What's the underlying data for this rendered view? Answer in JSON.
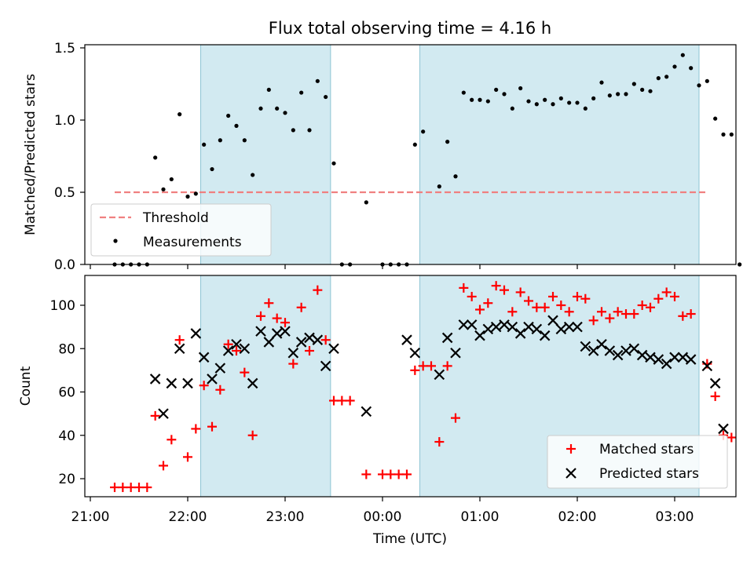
{
  "title": "Flux total observing time = 4.16 h",
  "chart_data": [
    {
      "type": "scatter",
      "ylabel": "Matched/Predicted stars",
      "xlabel": "",
      "xlim": [
        "21:00",
        "03:36"
      ],
      "ylim": [
        0,
        1.55
      ],
      "yticks": [
        0.0,
        0.5,
        1.0,
        1.5
      ],
      "ytick_labels": [
        "0.0",
        "0.5",
        "1.0",
        "1.5"
      ],
      "shaded_intervals": [
        [
          "22:08",
          "23:28"
        ],
        [
          "00:23",
          "03:15"
        ]
      ],
      "shade_color": "#add8e6",
      "threshold": {
        "name": "Threshold",
        "value": 0.5,
        "x_range": [
          "21:15",
          "03:20"
        ],
        "color": "#f08080"
      },
      "series": [
        {
          "name": "Measurements",
          "color": "#000000",
          "points": [
            [
              "21:15",
              0
            ],
            [
              "21:20",
              0
            ],
            [
              "21:25",
              0
            ],
            [
              "21:30",
              0
            ],
            [
              "21:35",
              0
            ],
            [
              "21:40",
              0.74
            ],
            [
              "21:45",
              0.52
            ],
            [
              "21:50",
              0.59
            ],
            [
              "21:55",
              1.04
            ],
            [
              "22:00",
              0.47
            ],
            [
              "22:05",
              0.49
            ],
            [
              "22:10",
              0.83
            ],
            [
              "22:15",
              0.66
            ],
            [
              "22:20",
              0.86
            ],
            [
              "22:25",
              1.03
            ],
            [
              "22:30",
              0.96
            ],
            [
              "22:35",
              0.86
            ],
            [
              "22:40",
              0.62
            ],
            [
              "22:45",
              1.08
            ],
            [
              "22:50",
              1.21
            ],
            [
              "22:55",
              1.08
            ],
            [
              "23:00",
              1.05
            ],
            [
              "23:05",
              0.93
            ],
            [
              "23:10",
              1.19
            ],
            [
              "23:15",
              0.93
            ],
            [
              "23:20",
              1.27
            ],
            [
              "23:25",
              1.16
            ],
            [
              "23:30",
              0.7
            ],
            [
              "23:35",
              0
            ],
            [
              "23:40",
              0
            ],
            [
              "23:50",
              0.43
            ],
            [
              "00:00",
              0
            ],
            [
              "00:05",
              0
            ],
            [
              "00:10",
              0
            ],
            [
              "00:15",
              0
            ],
            [
              "00:20",
              0.83
            ],
            [
              "00:25",
              0.92
            ],
            [
              "00:35",
              0.54
            ],
            [
              "00:40",
              0.85
            ],
            [
              "00:45",
              0.61
            ],
            [
              "00:50",
              1.19
            ],
            [
              "00:55",
              1.14
            ],
            [
              "01:00",
              1.14
            ],
            [
              "01:05",
              1.13
            ],
            [
              "01:10",
              1.21
            ],
            [
              "01:15",
              1.18
            ],
            [
              "01:20",
              1.08
            ],
            [
              "01:25",
              1.22
            ],
            [
              "01:30",
              1.13
            ],
            [
              "01:35",
              1.11
            ],
            [
              "01:40",
              1.14
            ],
            [
              "01:45",
              1.11
            ],
            [
              "01:50",
              1.15
            ],
            [
              "01:55",
              1.12
            ],
            [
              "02:00",
              1.12
            ],
            [
              "02:05",
              1.08
            ],
            [
              "02:10",
              1.15
            ],
            [
              "02:15",
              1.26
            ],
            [
              "02:20",
              1.17
            ],
            [
              "02:25",
              1.18
            ],
            [
              "02:30",
              1.18
            ],
            [
              "02:35",
              1.25
            ],
            [
              "02:40",
              1.21
            ],
            [
              "02:45",
              1.2
            ],
            [
              "02:50",
              1.29
            ],
            [
              "02:55",
              1.3
            ],
            [
              "03:00",
              1.37
            ],
            [
              "03:05",
              1.45
            ],
            [
              "03:10",
              1.36
            ],
            [
              "03:15",
              1.24
            ],
            [
              "03:20",
              1.27
            ],
            [
              "03:25",
              1.01
            ],
            [
              "03:30",
              0.9
            ],
            [
              "03:35",
              0.9
            ],
            [
              "03:40",
              0
            ]
          ]
        }
      ],
      "legend": {
        "location": "lower-left",
        "entries": [
          "Threshold",
          "Measurements"
        ]
      }
    },
    {
      "type": "scatter",
      "ylabel": "Count",
      "xlabel": "Time (UTC)",
      "xlim": [
        "21:00",
        "03:36"
      ],
      "ylim": [
        12,
        114
      ],
      "yticks": [
        20,
        40,
        60,
        80,
        100
      ],
      "ytick_labels": [
        "20",
        "40",
        "60",
        "80",
        "100"
      ],
      "xtick_labels": [
        "21:00",
        "22:00",
        "23:00",
        "00:00",
        "01:00",
        "02:00",
        "03:00"
      ],
      "shaded_intervals": [
        [
          "22:08",
          "23:28"
        ],
        [
          "00:23",
          "03:15"
        ]
      ],
      "series": [
        {
          "name": "Matched stars",
          "marker": "plus",
          "color": "#ff0000",
          "points": [
            [
              "21:15",
              16
            ],
            [
              "21:20",
              16
            ],
            [
              "21:25",
              16
            ],
            [
              "21:30",
              16
            ],
            [
              "21:35",
              16
            ],
            [
              "21:40",
              49
            ],
            [
              "21:45",
              26
            ],
            [
              "21:50",
              38
            ],
            [
              "21:55",
              84
            ],
            [
              "22:00",
              30
            ],
            [
              "22:05",
              43
            ],
            [
              "22:10",
              63
            ],
            [
              "22:15",
              44
            ],
            [
              "22:20",
              61
            ],
            [
              "22:25",
              82
            ],
            [
              "22:30",
              79
            ],
            [
              "22:35",
              69
            ],
            [
              "22:40",
              40
            ],
            [
              "22:45",
              95
            ],
            [
              "22:50",
              101
            ],
            [
              "22:55",
              94
            ],
            [
              "23:00",
              92
            ],
            [
              "23:05",
              73
            ],
            [
              "23:10",
              99
            ],
            [
              "23:15",
              79
            ],
            [
              "23:20",
              107
            ],
            [
              "23:25",
              84
            ],
            [
              "23:30",
              56
            ],
            [
              "23:35",
              56
            ],
            [
              "23:40",
              56
            ],
            [
              "23:50",
              22
            ],
            [
              "00:00",
              22
            ],
            [
              "00:05",
              22
            ],
            [
              "00:10",
              22
            ],
            [
              "00:15",
              22
            ],
            [
              "00:20",
              70
            ],
            [
              "00:25",
              72
            ],
            [
              "00:30",
              72
            ],
            [
              "00:35",
              37
            ],
            [
              "00:40",
              72
            ],
            [
              "00:45",
              48
            ],
            [
              "00:50",
              108
            ],
            [
              "00:55",
              104
            ],
            [
              "01:00",
              98
            ],
            [
              "01:05",
              101
            ],
            [
              "01:10",
              109
            ],
            [
              "01:15",
              107
            ],
            [
              "01:20",
              97
            ],
            [
              "01:25",
              106
            ],
            [
              "01:30",
              102
            ],
            [
              "01:35",
              99
            ],
            [
              "01:40",
              99
            ],
            [
              "01:45",
              104
            ],
            [
              "01:50",
              100
            ],
            [
              "01:55",
              97
            ],
            [
              "02:00",
              104
            ],
            [
              "02:05",
              103
            ],
            [
              "02:10",
              93
            ],
            [
              "02:15",
              97
            ],
            [
              "02:20",
              94
            ],
            [
              "02:25",
              97
            ],
            [
              "02:30",
              96
            ],
            [
              "02:35",
              96
            ],
            [
              "02:40",
              100
            ],
            [
              "02:45",
              99
            ],
            [
              "02:50",
              103
            ],
            [
              "02:55",
              106
            ],
            [
              "03:00",
              104
            ],
            [
              "03:05",
              95
            ],
            [
              "03:10",
              96
            ],
            [
              "03:20",
              73
            ],
            [
              "03:25",
              58
            ],
            [
              "03:30",
              40
            ],
            [
              "03:35",
              39
            ]
          ]
        },
        {
          "name": "Predicted stars",
          "marker": "x",
          "color": "#000000",
          "points": [
            [
              "21:40",
              66
            ],
            [
              "21:45",
              50
            ],
            [
              "21:50",
              64
            ],
            [
              "21:55",
              80
            ],
            [
              "22:00",
              64
            ],
            [
              "22:05",
              87
            ],
            [
              "22:10",
              76
            ],
            [
              "22:15",
              66
            ],
            [
              "22:20",
              71
            ],
            [
              "22:25",
              79
            ],
            [
              "22:30",
              82
            ],
            [
              "22:35",
              80
            ],
            [
              "22:40",
              64
            ],
            [
              "22:45",
              88
            ],
            [
              "22:50",
              83
            ],
            [
              "22:55",
              87
            ],
            [
              "23:00",
              88
            ],
            [
              "23:05",
              78
            ],
            [
              "23:10",
              83
            ],
            [
              "23:15",
              85
            ],
            [
              "23:20",
              84
            ],
            [
              "23:25",
              72
            ],
            [
              "23:30",
              80
            ],
            [
              "23:50",
              51
            ],
            [
              "00:15",
              84
            ],
            [
              "00:20",
              78
            ],
            [
              "00:35",
              68
            ],
            [
              "00:40",
              85
            ],
            [
              "00:45",
              78
            ],
            [
              "00:50",
              91
            ],
            [
              "00:55",
              91
            ],
            [
              "01:00",
              86
            ],
            [
              "01:05",
              89
            ],
            [
              "01:10",
              90
            ],
            [
              "01:15",
              91
            ],
            [
              "01:20",
              90
            ],
            [
              "01:25",
              87
            ],
            [
              "01:30",
              90
            ],
            [
              "01:35",
              89
            ],
            [
              "01:40",
              86
            ],
            [
              "01:45",
              93
            ],
            [
              "01:50",
              89
            ],
            [
              "01:55",
              90
            ],
            [
              "02:00",
              90
            ],
            [
              "02:05",
              81
            ],
            [
              "02:10",
              79
            ],
            [
              "02:15",
              82
            ],
            [
              "02:20",
              79
            ],
            [
              "02:25",
              77
            ],
            [
              "02:30",
              79
            ],
            [
              "02:35",
              80
            ],
            [
              "02:40",
              77
            ],
            [
              "02:45",
              76
            ],
            [
              "02:50",
              75
            ],
            [
              "02:55",
              73
            ],
            [
              "03:00",
              76
            ],
            [
              "03:05",
              76
            ],
            [
              "03:10",
              75
            ],
            [
              "03:20",
              72
            ],
            [
              "03:25",
              64
            ],
            [
              "03:30",
              43
            ]
          ]
        }
      ],
      "legend": {
        "location": "lower-right",
        "entries": [
          "Matched stars",
          "Predicted stars"
        ]
      }
    }
  ]
}
